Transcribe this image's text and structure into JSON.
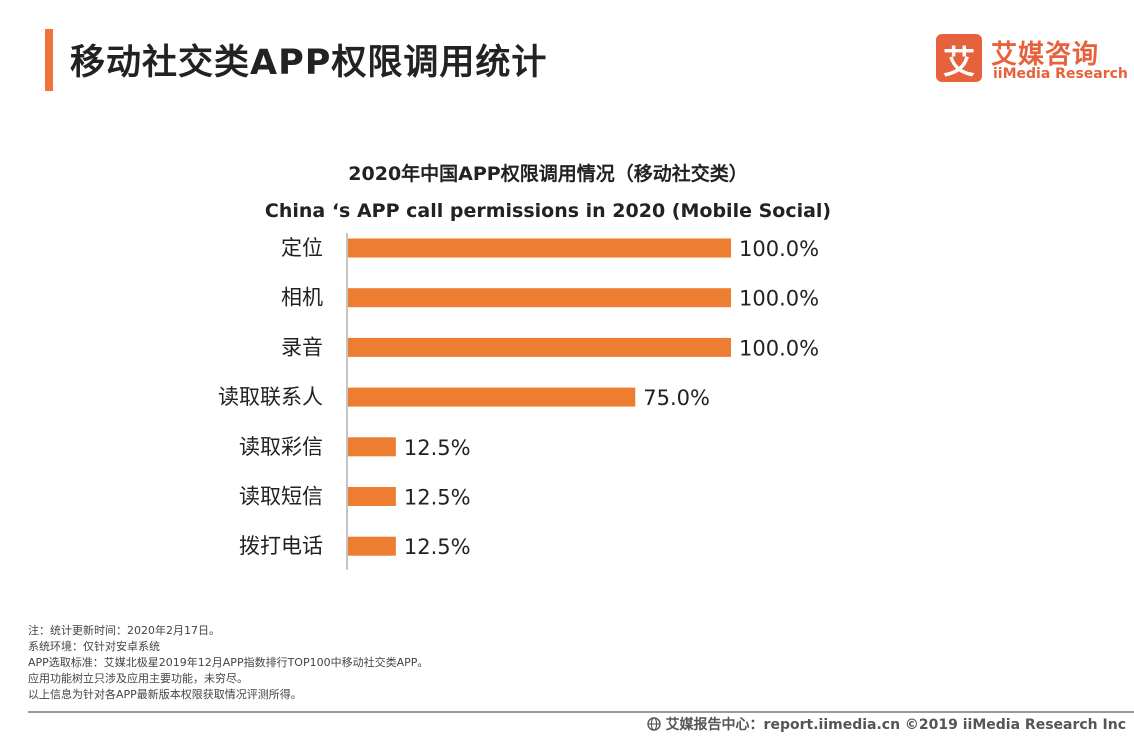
{
  "header": {
    "title": "移动社交类APP权限调用统计"
  },
  "logo": {
    "glyph": "艾",
    "name_cn": "艾媒咨询",
    "name_en": "iiMedia Research"
  },
  "chart_data": {
    "type": "bar",
    "orientation": "horizontal",
    "title": "2020年中国APP权限调用情况（移动社交类）",
    "subtitle": "China ‘s APP call permissions  in 2020 (Mobile Social)",
    "categories": [
      "定位",
      "相机",
      "录音",
      "读取联系人",
      "读取彩信",
      "读取短信",
      "拨打电话"
    ],
    "values": [
      100.0,
      100.0,
      100.0,
      75.0,
      12.5,
      12.5,
      12.5
    ],
    "value_labels": [
      "100.0%",
      "100.0%",
      "100.0%",
      "75.0%",
      "12.5%",
      "12.5%",
      "12.5%"
    ],
    "xlim": [
      0,
      100
    ],
    "unit": "%",
    "color": "#ed7d31",
    "grid": false,
    "legend": "none"
  },
  "notes": [
    "注：统计更新时间：2020年2月17日。",
    "系统环境：仅针对安卓系统",
    "APP选取标准：艾媒北极星2019年12月APP指数排行TOP100中移动社交类APP。",
    "应用功能树立只涉及应用主要功能，未穷尽。",
    "以上信息为针对各APP最新版本权限获取情况评测所得。"
  ],
  "footer": {
    "text": "艾媒报告中心：report.iimedia.cn  ©2019  iiMedia Research  Inc"
  },
  "colors": {
    "accent": "#f0743a",
    "brand": "#e7623c",
    "bar": "#ed7d31"
  }
}
